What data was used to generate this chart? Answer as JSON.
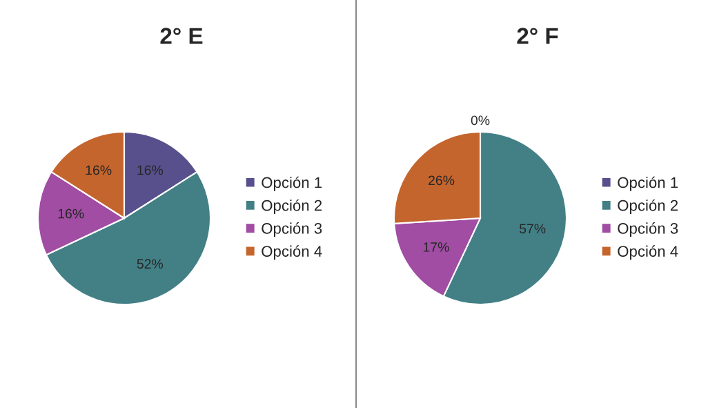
{
  "chart_data": [
    {
      "type": "pie",
      "title": "2° E",
      "categories": [
        "Opción 1",
        "Opción 2",
        "Opción 3",
        "Opción 4"
      ],
      "values": [
        16,
        52,
        16,
        16
      ],
      "value_labels": [
        "16%",
        "52%",
        "16%",
        "16%"
      ],
      "colors": [
        "#58508c",
        "#438086",
        "#a04da3",
        "#c4652d"
      ],
      "legend": "right"
    },
    {
      "type": "pie",
      "title": "2° F",
      "categories": [
        "Opción 1",
        "Opción 2",
        "Opción 3",
        "Opción 4"
      ],
      "values": [
        0,
        57,
        17,
        26
      ],
      "value_labels": [
        "0%",
        "57%",
        "17%",
        "26%"
      ],
      "colors": [
        "#58508c",
        "#438086",
        "#a04da3",
        "#c4652d"
      ],
      "legend": "right"
    }
  ]
}
